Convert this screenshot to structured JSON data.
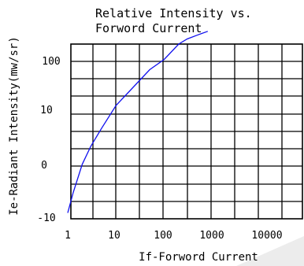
{
  "chart_data": {
    "type": "line",
    "title_line1": "Relative Intensity vs.",
    "title_line2": "Forword Current",
    "xlabel": "If-Forword Current",
    "ylabel": "Ie-Radiant Intensity(mw/sr)",
    "x_ticks": [
      "1",
      "10",
      "100",
      "1000",
      "10000"
    ],
    "y_ticks": [
      "100",
      "10",
      "0",
      "-10"
    ],
    "grid": true,
    "series": [
      {
        "color": "#1010ee",
        "x": [
          1,
          1.3,
          2,
          3,
          5,
          10,
          20,
          50,
          100,
          200,
          300,
          500,
          800
        ],
        "y": [
          -9,
          -5,
          0.5,
          4,
          7.5,
          12,
          15,
          19,
          21,
          24,
          25,
          25.8,
          26.5
        ]
      }
    ]
  }
}
